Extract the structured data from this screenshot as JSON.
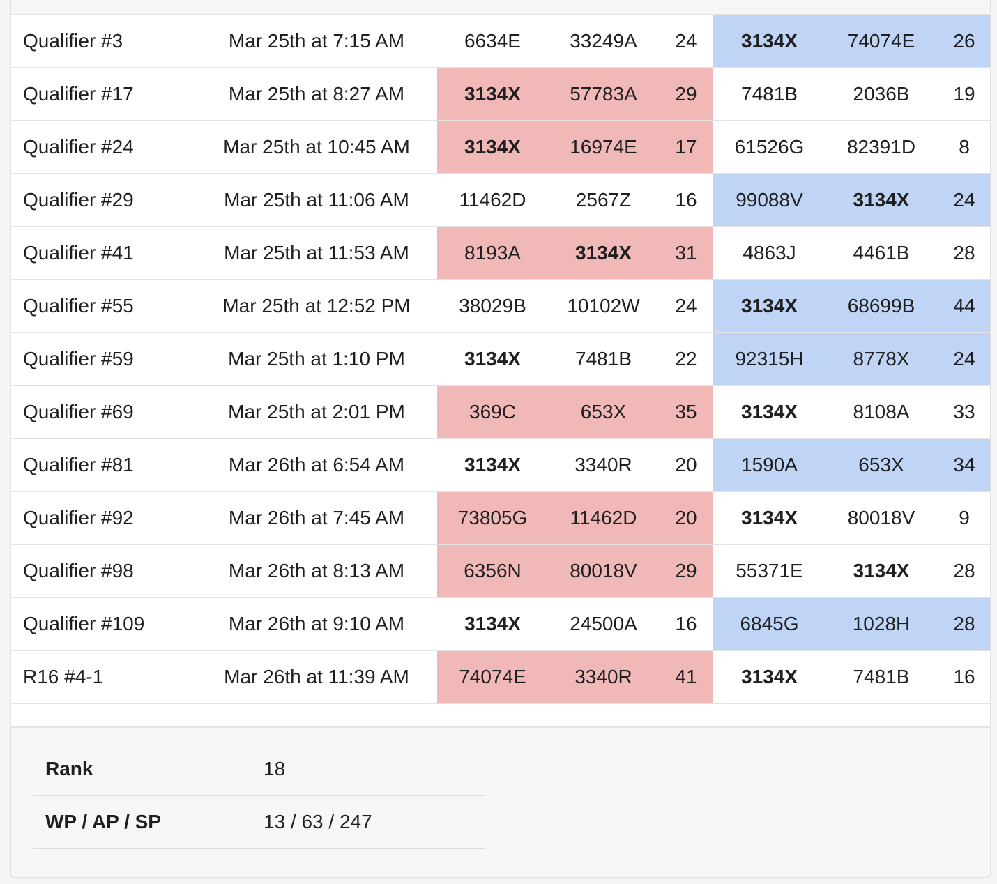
{
  "self_team": "3134X",
  "matches": [
    {
      "name": "Qualifier #3",
      "time": "Mar 25th at 7:15 AM",
      "red": [
        "6634E",
        "33249A"
      ],
      "red_score": "24",
      "blue": [
        "3134X",
        "74074E"
      ],
      "blue_score": "26",
      "winner": "blue"
    },
    {
      "name": "Qualifier #17",
      "time": "Mar 25th at 8:27 AM",
      "red": [
        "3134X",
        "57783A"
      ],
      "red_score": "29",
      "blue": [
        "7481B",
        "2036B"
      ],
      "blue_score": "19",
      "winner": "red"
    },
    {
      "name": "Qualifier #24",
      "time": "Mar 25th at 10:45 AM",
      "red": [
        "3134X",
        "16974E"
      ],
      "red_score": "17",
      "blue": [
        "61526G",
        "82391D"
      ],
      "blue_score": "8",
      "winner": "red"
    },
    {
      "name": "Qualifier #29",
      "time": "Mar 25th at 11:06 AM",
      "red": [
        "11462D",
        "2567Z"
      ],
      "red_score": "16",
      "blue": [
        "99088V",
        "3134X"
      ],
      "blue_score": "24",
      "winner": "blue"
    },
    {
      "name": "Qualifier #41",
      "time": "Mar 25th at 11:53 AM",
      "red": [
        "8193A",
        "3134X"
      ],
      "red_score": "31",
      "blue": [
        "4863J",
        "4461B"
      ],
      "blue_score": "28",
      "winner": "red"
    },
    {
      "name": "Qualifier #55",
      "time": "Mar 25th at 12:52 PM",
      "red": [
        "38029B",
        "10102W"
      ],
      "red_score": "24",
      "blue": [
        "3134X",
        "68699B"
      ],
      "blue_score": "44",
      "winner": "blue"
    },
    {
      "name": "Qualifier #59",
      "time": "Mar 25th at 1:10 PM",
      "red": [
        "3134X",
        "7481B"
      ],
      "red_score": "22",
      "blue": [
        "92315H",
        "8778X"
      ],
      "blue_score": "24",
      "winner": "blue"
    },
    {
      "name": "Qualifier #69",
      "time": "Mar 25th at 2:01 PM",
      "red": [
        "369C",
        "653X"
      ],
      "red_score": "35",
      "blue": [
        "3134X",
        "8108A"
      ],
      "blue_score": "33",
      "winner": "red"
    },
    {
      "name": "Qualifier #81",
      "time": "Mar 26th at 6:54 AM",
      "red": [
        "3134X",
        "3340R"
      ],
      "red_score": "20",
      "blue": [
        "1590A",
        "653X"
      ],
      "blue_score": "34",
      "winner": "blue"
    },
    {
      "name": "Qualifier #92",
      "time": "Mar 26th at 7:45 AM",
      "red": [
        "73805G",
        "11462D"
      ],
      "red_score": "20",
      "blue": [
        "3134X",
        "80018V"
      ],
      "blue_score": "9",
      "winner": "red"
    },
    {
      "name": "Qualifier #98",
      "time": "Mar 26th at 8:13 AM",
      "red": [
        "6356N",
        "80018V"
      ],
      "red_score": "29",
      "blue": [
        "55371E",
        "3134X"
      ],
      "blue_score": "28",
      "winner": "red"
    },
    {
      "name": "Qualifier #109",
      "time": "Mar 26th at 9:10 AM",
      "red": [
        "3134X",
        "24500A"
      ],
      "red_score": "16",
      "blue": [
        "6845G",
        "1028H"
      ],
      "blue_score": "28",
      "winner": "blue"
    },
    {
      "name": "R16 #4-1",
      "time": "Mar 26th at 11:39 AM",
      "red": [
        "74074E",
        "3340R"
      ],
      "red_score": "41",
      "blue": [
        "3134X",
        "7481B"
      ],
      "blue_score": "16",
      "winner": "red"
    }
  ],
  "stats": {
    "rank_label": "Rank",
    "rank_value": "18",
    "points_label": "WP / AP / SP",
    "points_value": "13 / 63 / 247"
  },
  "colors": {
    "red_alliance_win": "#f1b8b8",
    "blue_alliance_win": "#c0d5f6"
  }
}
